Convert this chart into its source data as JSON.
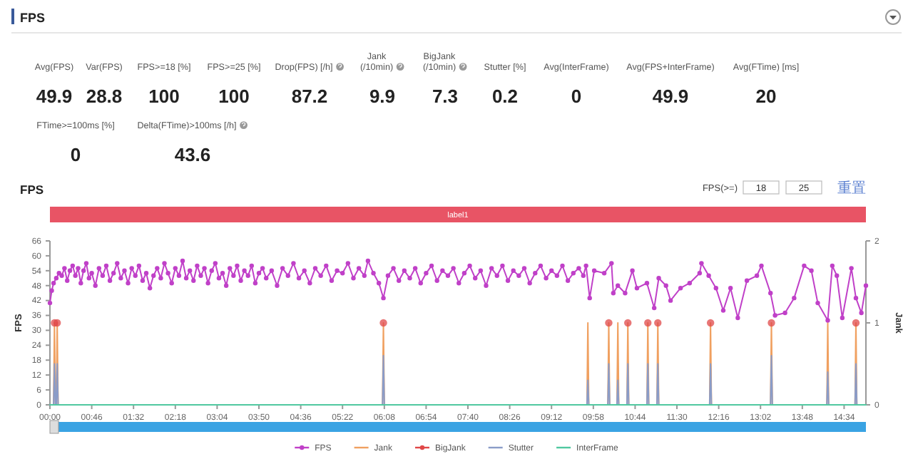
{
  "chart_data": [
    {
      "type": "other",
      "title": "FPS",
      "categories": [
        "Avg(FPS)",
        "Var(FPS)",
        "FPS>=18 [%]",
        "FPS>=25 [%]",
        "Drop(FPS) [/h]",
        "Jank (/10min)",
        "BigJank (/10min)",
        "Stutter [%]",
        "Avg(InterFrame)",
        "Avg(FPS+InterFrame)",
        "Avg(FTime) [ms]",
        "FTime>=100ms [%]",
        "Delta(FTime)>100ms [/h]"
      ],
      "values": [
        49.9,
        28.8,
        100,
        100,
        87.2,
        9.9,
        7.3,
        0.2,
        0,
        49.9,
        20,
        0,
        43.6
      ],
      "data_labels": true
    },
    {
      "type": "line",
      "title": "FPS",
      "ylabel": "FPS",
      "y2label": "Jank",
      "annotations": [
        "label1",
        "FPS(>=)",
        "18",
        "25",
        "重置"
      ],
      "legend": "bottom",
      "xlim": [
        0,
        898
      ],
      "xticks": [
        {
          "value": 0,
          "label": "00:00"
        },
        {
          "value": 46,
          "label": "00:46"
        },
        {
          "value": 92,
          "label": "01:32"
        },
        {
          "value": 138,
          "label": "02:18"
        },
        {
          "value": 184,
          "label": "03:04"
        },
        {
          "value": 230,
          "label": "03:50"
        },
        {
          "value": 276,
          "label": "04:36"
        },
        {
          "value": 322,
          "label": "05:22"
        },
        {
          "value": 368,
          "label": "06:08"
        },
        {
          "value": 414,
          "label": "06:54"
        },
        {
          "value": 460,
          "label": "07:40"
        },
        {
          "value": 506,
          "label": "08:26"
        },
        {
          "value": 552,
          "label": "09:12"
        },
        {
          "value": 598,
          "label": "09:58"
        },
        {
          "value": 644,
          "label": "10:44"
        },
        {
          "value": 690,
          "label": "11:30"
        },
        {
          "value": 736,
          "label": "12:16"
        },
        {
          "value": 782,
          "label": "13:02"
        },
        {
          "value": 828,
          "label": "13:48"
        },
        {
          "value": 874,
          "label": "14:34"
        }
      ],
      "ylim": [
        0,
        66
      ],
      "yticks": [
        0,
        6,
        12,
        18,
        24,
        30,
        36,
        42,
        48,
        54,
        60,
        66
      ],
      "y2lim": [
        0,
        2
      ],
      "y2ticks": [
        0,
        1,
        2
      ],
      "series": [
        {
          "name": "FPS",
          "color": "#c040c8",
          "marker": "circle",
          "x": [
            0,
            2,
            4,
            7,
            10,
            13,
            16,
            19,
            22,
            25,
            28,
            31,
            34,
            37,
            40,
            43,
            46,
            50,
            54,
            58,
            62,
            66,
            70,
            74,
            78,
            82,
            86,
            90,
            94,
            98,
            102,
            106,
            110,
            114,
            118,
            122,
            126,
            130,
            134,
            138,
            142,
            146,
            150,
            154,
            158,
            162,
            166,
            170,
            174,
            178,
            182,
            186,
            190,
            194,
            198,
            202,
            206,
            210,
            214,
            218,
            222,
            226,
            230,
            234,
            238,
            244,
            250,
            256,
            262,
            268,
            274,
            280,
            286,
            292,
            298,
            304,
            310,
            316,
            322,
            328,
            334,
            340,
            346,
            350,
            356,
            362,
            367,
            372,
            378,
            384,
            390,
            396,
            402,
            408,
            414,
            420,
            426,
            432,
            438,
            444,
            450,
            456,
            462,
            468,
            474,
            480,
            486,
            492,
            498,
            504,
            510,
            516,
            522,
            528,
            534,
            540,
            546,
            552,
            558,
            564,
            570,
            576,
            582,
            587,
            590,
            594,
            599,
            610,
            618,
            620,
            625,
            633,
            641,
            646,
            657,
            665,
            670,
            678,
            683,
            694,
            704,
            715,
            717,
            725,
            733,
            741,
            749,
            757,
            767,
            778,
            783,
            793,
            798,
            809,
            819,
            830,
            838,
            845,
            856,
            861,
            866,
            872,
            882,
            887,
            893,
            898
          ],
          "values": [
            41,
            46,
            49,
            51,
            53,
            52,
            55,
            50,
            54,
            56,
            52,
            55,
            49,
            54,
            57,
            51,
            53,
            48,
            55,
            52,
            56,
            50,
            53,
            57,
            51,
            54,
            49,
            55,
            52,
            56,
            50,
            53,
            47,
            52,
            55,
            51,
            57,
            53,
            49,
            55,
            52,
            58,
            51,
            54,
            50,
            56,
            52,
            55,
            49,
            54,
            57,
            51,
            53,
            48,
            55,
            52,
            56,
            50,
            54,
            52,
            56,
            49,
            53,
            55,
            51,
            54,
            48,
            55,
            52,
            57,
            51,
            54,
            49,
            55,
            52,
            56,
            50,
            54,
            53,
            57,
            51,
            55,
            52,
            58,
            53,
            49,
            43,
            52,
            55,
            50,
            54,
            51,
            55,
            49,
            53,
            56,
            50,
            54,
            52,
            55,
            49,
            53,
            56,
            51,
            54,
            48,
            55,
            52,
            56,
            50,
            54,
            52,
            55,
            49,
            53,
            56,
            51,
            54,
            52,
            56,
            50,
            53,
            55,
            52,
            56,
            43,
            54,
            53,
            57,
            45,
            48,
            45,
            54,
            47,
            49,
            39,
            51,
            48,
            42,
            47,
            49,
            53,
            57,
            52,
            47,
            38,
            47,
            35,
            50,
            52,
            56,
            45,
            36,
            37,
            43,
            56,
            54,
            41,
            34,
            56,
            52,
            35,
            55,
            43,
            37,
            48
          ]
        },
        {
          "name": "Jank",
          "color": "#f0a060",
          "axis": "y2",
          "marker": "none",
          "x": [
            0,
            4,
            5,
            6,
            7,
            8,
            9,
            366,
            367,
            368,
            591,
            592,
            593,
            614,
            615,
            616,
            624,
            625,
            626,
            635,
            636,
            637,
            657,
            658,
            659,
            668,
            669,
            670,
            726,
            727,
            728,
            793,
            794,
            795,
            855,
            856,
            857,
            886,
            887,
            888,
            898
          ],
          "values": [
            0,
            0,
            1,
            0,
            0,
            1,
            0,
            0,
            1,
            0,
            0,
            1,
            0,
            0,
            1,
            0,
            0,
            1,
            0,
            0,
            1,
            0,
            0,
            1,
            0,
            0,
            1,
            0,
            0,
            1,
            0,
            0,
            1,
            0,
            0,
            1,
            0,
            0,
            1,
            0,
            0
          ]
        },
        {
          "name": "BigJank",
          "color": "#e04848",
          "axis": "y2",
          "type": "scatter",
          "marker": "circle",
          "x": [
            5,
            8,
            367,
            615,
            636,
            658,
            669,
            727,
            794,
            887
          ],
          "values": [
            1,
            1,
            1,
            1,
            1,
            1,
            1,
            1,
            1,
            1
          ]
        },
        {
          "name": "Stutter",
          "color": "#8a9cc8",
          "axis": "y2",
          "marker": "none",
          "x": [
            0,
            4,
            5,
            6,
            7,
            8,
            9,
            366,
            367,
            368,
            591,
            592,
            593,
            614,
            615,
            616,
            624,
            625,
            626,
            635,
            636,
            637,
            657,
            658,
            659,
            668,
            669,
            670,
            726,
            727,
            728,
            793,
            794,
            795,
            855,
            856,
            857,
            886,
            887,
            888,
            898
          ],
          "values": [
            0,
            0,
            0.5,
            0,
            0,
            0.5,
            0,
            0,
            0.6,
            0,
            0,
            0.3,
            0,
            0,
            0.5,
            0,
            0,
            0.3,
            0,
            0,
            0.5,
            0,
            0,
            0.5,
            0,
            0,
            0.5,
            0,
            0,
            0.5,
            0,
            0,
            0.6,
            0,
            0,
            0.4,
            0,
            0,
            0.5,
            0,
            0
          ]
        },
        {
          "name": "InterFrame",
          "color": "#50c8a0",
          "axis": "y2",
          "marker": "none",
          "x": [
            0,
            898
          ],
          "values": [
            0,
            0
          ]
        }
      ]
    }
  ]
}
